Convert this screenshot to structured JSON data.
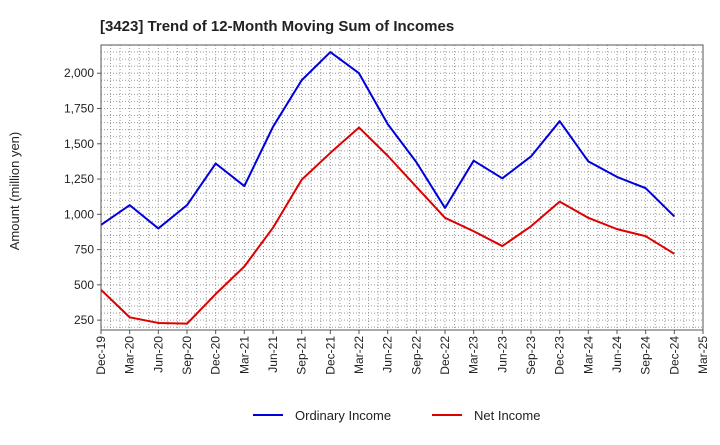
{
  "chart_data": {
    "type": "line",
    "title": "[3423]  Trend of 12-Month Moving Sum of Incomes",
    "xlabel": "",
    "ylabel": "Amount (million yen)",
    "categories": [
      "Dec-19",
      "Mar-20",
      "Jun-20",
      "Sep-20",
      "Dec-20",
      "Mar-21",
      "Jun-21",
      "Sep-21",
      "Dec-21",
      "Mar-22",
      "Jun-22",
      "Sep-22",
      "Dec-22",
      "Mar-23",
      "Jun-23",
      "Sep-23",
      "Dec-23",
      "Mar-24",
      "Jun-24",
      "Sep-24",
      "Dec-24",
      "Mar-25"
    ],
    "x_tick_labels": [
      "Dec-19",
      "Mar-20",
      "Jun-20",
      "Sep-20",
      "Dec-20",
      "Mar-21",
      "Jun-21",
      "Sep-21",
      "Dec-21",
      "Mar-22",
      "Jun-22",
      "Sep-22",
      "Dec-22",
      "Mar-23",
      "Jun-23",
      "Sep-23",
      "Dec-23",
      "Mar-24",
      "Jun-24",
      "Sep-24",
      "Dec-24",
      "Mar-25"
    ],
    "y_ticks": [
      250,
      500,
      750,
      1000,
      1250,
      1500,
      1750,
      2000
    ],
    "y_tick_labels": [
      "250",
      "500",
      "750",
      "1,000",
      "1,250",
      "1,500",
      "1,750",
      "2,000"
    ],
    "ylim": [
      180,
      2200
    ],
    "grid": true,
    "legend_position": "bottom",
    "series": [
      {
        "name": "Ordinary Income",
        "color": "#0000dd",
        "values": [
          925,
          1065,
          900,
          1065,
          1360,
          1200,
          1620,
          1950,
          2150,
          2000,
          1640,
          1370,
          1045,
          1380,
          1255,
          1410,
          1660,
          1375,
          1265,
          1185,
          985,
          null
        ]
      },
      {
        "name": "Net Income",
        "color": "#dd0000",
        "values": [
          465,
          270,
          230,
          225,
          435,
          630,
          905,
          1245,
          1435,
          1615,
          1415,
          1195,
          975,
          880,
          775,
          915,
          1090,
          975,
          895,
          845,
          720,
          null
        ]
      }
    ]
  }
}
